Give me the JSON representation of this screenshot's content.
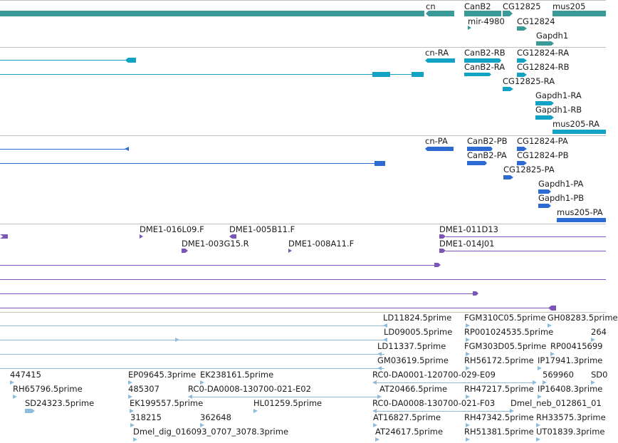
{
  "colors": {
    "gene": "#3a9a98",
    "transcript_cyan": "#12a3c4",
    "transcript_blue": "#2d6ad2",
    "clone": "#7a56b8",
    "est": "#8dbcdc",
    "divider": "#c0c0c0"
  },
  "genes": {
    "cn": "cn",
    "canb2": "CanB2",
    "cg12825": "CG12825",
    "mus205": "mus205",
    "mir4980": "mir-4980",
    "cg12824": "CG12824",
    "gapdh1": "Gapdh1"
  },
  "transcripts_a": {
    "cn_ra": "cn-RA",
    "canb2_rb": "CanB2-RB",
    "cg12824_ra": "CG12824-RA",
    "canb2_ra": "CanB2-RA",
    "cg12824_rb": "CG12824-RB",
    "cg12825_ra": "CG12825-RA",
    "gapdh1_ra": "Gapdh1-RA",
    "gapdh1_rb": "Gapdh1-RB",
    "mus205_ra": "mus205-RA"
  },
  "transcripts_b": {
    "cn_pa": "cn-PA",
    "canb2_pb": "CanB2-PB",
    "cg12824_pa": "CG12824-PA",
    "canb2_pa": "CanB2-PA",
    "cg12824_pb": "CG12824-PB",
    "cg12825_pa": "CG12825-PA",
    "gapdh1_pa": "Gapdh1-PA",
    "gapdh1_pb": "Gapdh1-PB",
    "mus205_pa": "mus205-PA"
  },
  "clones": {
    "c1": "DME1-016L09.F",
    "c2": "DME1-005B11.F",
    "c3": "DME1-011D13",
    "c4": "DME1-003G15.R",
    "c5": "DME1-008A11.F",
    "c6": "DME1-014J01"
  },
  "ests": {
    "e1": "LD11824.5prime",
    "e2": "FGM310C05.5prime",
    "e3": "GH08283.5prime",
    "e4": "LD09005.5prime",
    "e5": "RP001024535.5prime",
    "e6": "264",
    "e7": "LD11337.5prime",
    "e8": "FGM303D05.5prime",
    "e9": "RP00415699",
    "e10": "GM03619.5prime",
    "e11": "RH56172.5prime",
    "e12": "IP17941.3prime",
    "e13": "447415",
    "e14": "EP09645.3prime",
    "e15": "EK238161.5prime",
    "e16": "RC0-DA0001-120700-029-E09",
    "e17": "569960",
    "e18": "SD0",
    "e19": "RH65796.5prime",
    "e20": "485307",
    "e21": "RC0-DA0008-130700-021-E02",
    "e22": "AT20466.5prime",
    "e23": "RH47217.5prime",
    "e24": "IP16408.3prime",
    "e25": "SD24323.5prime",
    "e26": "EK199557.5prime",
    "e27": "HL01259.5prime",
    "e28": "RC0-DA0008-130700-021-F03",
    "e29": "Dmel_neb_012861_01",
    "e30": "318215",
    "e31": "362648",
    "e32": "AT16827.5prime",
    "e33": "RH47342.5prime",
    "e34": "RH33575.3prime",
    "e35": "Dmel_dig_016093_0707_3078.3prime",
    "e36": "AT24617.5prime",
    "e37": "RH51381.5prime",
    "e38": "UT01839.3prime"
  }
}
